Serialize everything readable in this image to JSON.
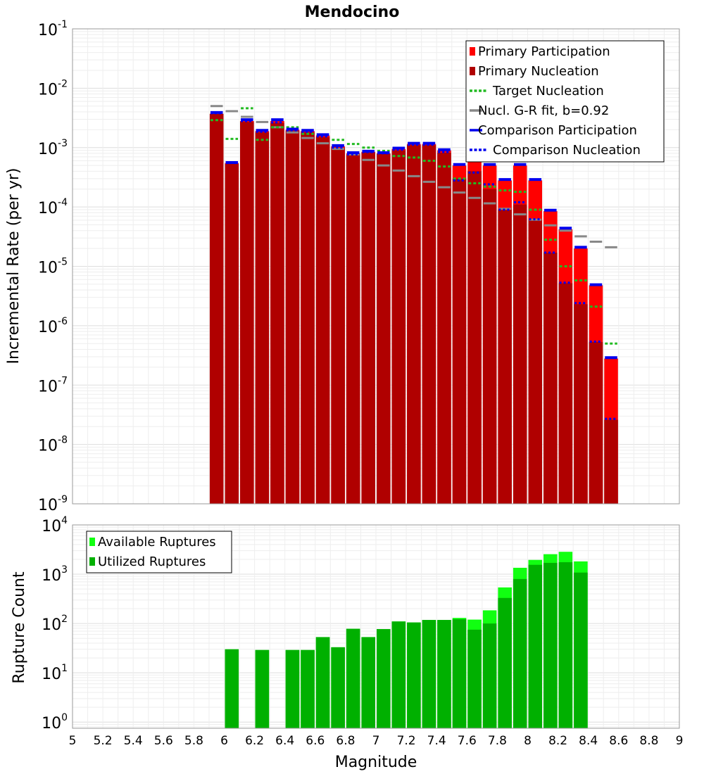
{
  "chart_data": {
    "type": "bar",
    "title": "Mendocino",
    "xlabel": "Magnitude",
    "xlim": [
      5,
      9
    ],
    "x_ticks": [
      "5",
      "5.2",
      "5.4",
      "5.6",
      "5.8",
      "6",
      "6.2",
      "6.4",
      "6.6",
      "6.8",
      "7",
      "7.2",
      "7.4",
      "7.6",
      "7.8",
      "8",
      "8.2",
      "8.4",
      "8.6",
      "8.8",
      "9"
    ],
    "top_panel": {
      "ylabel": "Incremental Rate (per yr)",
      "yscale": "log",
      "ylim": [
        1e-09,
        0.1
      ],
      "y_tick_exponents": [
        "-1",
        "-2",
        "-3",
        "-4",
        "-5",
        "-6",
        "-7",
        "-8",
        "-9"
      ],
      "grid": true,
      "legend_placement": "top-right",
      "x": [
        5.95,
        6.05,
        6.15,
        6.25,
        6.35,
        6.45,
        6.55,
        6.65,
        6.75,
        6.85,
        6.95,
        7.05,
        7.15,
        7.25,
        7.35,
        7.45,
        7.55,
        7.65,
        7.75,
        7.85,
        7.95,
        8.05,
        8.15,
        8.25,
        8.35,
        8.45,
        8.55
      ],
      "series": [
        {
          "name": "Primary Participation",
          "color": "#ff0000",
          "style": "bar",
          "values": [
            0.0037,
            0.00055,
            0.0028,
            0.0019,
            0.0028,
            0.002,
            0.0019,
            0.0016,
            0.00105,
            0.0008,
            0.00085,
            0.0008,
            0.00095,
            0.00115,
            0.00115,
            0.0009,
            0.0005,
            0.00075,
            0.0005,
            0.00028,
            0.0005,
            0.00028,
            8.5e-05,
            4.2e-05,
            2e-05,
            4.8e-06,
            2.8e-07
          ]
        },
        {
          "name": "Primary Nucleation",
          "color": "#b00000",
          "style": "bar",
          "values": [
            0.0037,
            0.00053,
            0.0027,
            0.0018,
            0.0026,
            0.0019,
            0.0018,
            0.0015,
            0.00098,
            0.00075,
            0.00082,
            0.00078,
            0.0009,
            0.0011,
            0.0011,
            0.00082,
            0.0003,
            0.0004,
            0.0002,
            9e-05,
            0.00011,
            6e-05,
            1.7e-05,
            5.2e-06,
            2.3e-06,
            5.3e-07,
            2.6e-08
          ]
        },
        {
          "name": "Target Nucleation",
          "color": "#22bb22",
          "style": "dotted",
          "values": [
            0.0029,
            0.0014,
            0.0046,
            0.00135,
            0.0022,
            0.0022,
            0.0017,
            0.00165,
            0.00135,
            0.00115,
            0.001,
            0.00088,
            0.00072,
            0.00068,
            0.0006,
            0.00048,
            0.0003,
            0.00025,
            0.00022,
            0.00019,
            0.00018,
            9e-05,
            2.8e-05,
            1e-05,
            5.8e-06,
            2.1e-06,
            5e-07
          ]
        },
        {
          "name": "Nucl. G-R fit, b=0.92",
          "color": "#888888",
          "style": "line",
          "values": [
            0.005,
            0.0041,
            0.0033,
            0.0027,
            0.0022,
            0.0018,
            0.00145,
            0.00118,
            0.00095,
            0.00077,
            0.00062,
            0.0005,
            0.00041,
            0.00033,
            0.000265,
            0.000215,
            0.000175,
            0.000142,
            0.000115,
            9.3e-05,
            7.5e-05,
            6.1e-05,
            4.9e-05,
            4e-05,
            3.2e-05,
            2.6e-05,
            2.1e-05
          ]
        },
        {
          "name": "Comparison Participation",
          "color": "#0000ee",
          "style": "line",
          "values": [
            0.0039,
            0.00056,
            0.00295,
            0.00195,
            0.00295,
            0.00205,
            0.00195,
            0.00165,
            0.00108,
            0.00082,
            0.00087,
            0.00082,
            0.00098,
            0.00118,
            0.00118,
            0.00092,
            0.00052,
            0.00077,
            0.00052,
            0.00029,
            0.00052,
            0.00029,
            8.8e-05,
            4.4e-05,
            2.1e-05,
            4.9e-06,
            2.9e-07
          ]
        },
        {
          "name": "Comparison Nucleation",
          "color": "#0000ee",
          "style": "dotted",
          "values": [
            0.0038,
            0.00055,
            0.0028,
            0.00185,
            0.00265,
            0.00195,
            0.00185,
            0.00155,
            0.001,
            0.00077,
            0.00084,
            0.0008,
            0.00092,
            0.00112,
            0.00112,
            0.00084,
            0.00028,
            0.00038,
            0.00024,
            9e-05,
            0.00012,
            6.2e-05,
            1.7e-05,
            5.3e-06,
            2.4e-06,
            5.4e-07,
            2.7e-08
          ]
        }
      ]
    },
    "bottom_panel": {
      "ylabel": "Rupture Count",
      "yscale": "log",
      "ylim": [
        0.75,
        10000
      ],
      "y_tick_exponents": [
        "0",
        "1",
        "2",
        "3",
        "4"
      ],
      "grid": true,
      "legend_placement": "top-left",
      "x": [
        6.05,
        6.25,
        6.45,
        6.55,
        6.65,
        6.75,
        6.85,
        6.95,
        7.05,
        7.15,
        7.25,
        7.35,
        7.45,
        7.55,
        7.65,
        7.75,
        7.85,
        7.95,
        8.05,
        8.15,
        8.25,
        8.35
      ],
      "series": [
        {
          "name": "Available Ruptures",
          "color": "#11ff11",
          "values": [
            30,
            29,
            29,
            29,
            53,
            33,
            78,
            53,
            77,
            110,
            105,
            118,
            118,
            130,
            120,
            185,
            540,
            1350,
            1950,
            2550,
            2850,
            1820
          ]
        },
        {
          "name": "Utilized Ruptures",
          "color": "#00b000",
          "values": [
            30,
            29,
            29,
            29,
            53,
            33,
            78,
            53,
            77,
            110,
            105,
            118,
            118,
            122,
            75,
            100,
            330,
            800,
            1550,
            1700,
            1750,
            1080
          ]
        }
      ]
    }
  }
}
